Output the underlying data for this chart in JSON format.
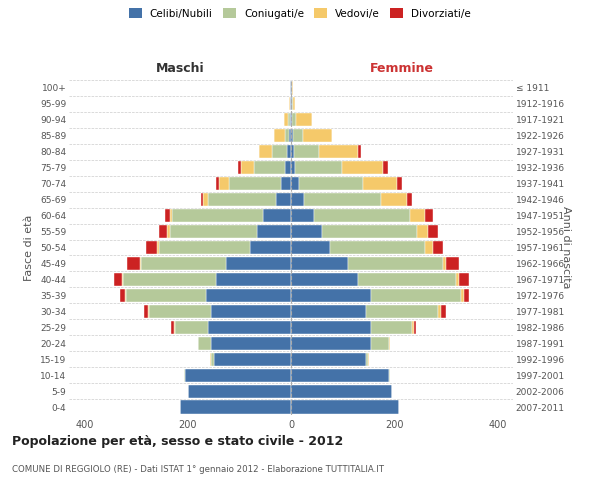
{
  "age_groups": [
    "0-4",
    "5-9",
    "10-14",
    "15-19",
    "20-24",
    "25-29",
    "30-34",
    "35-39",
    "40-44",
    "45-49",
    "50-54",
    "55-59",
    "60-64",
    "65-69",
    "70-74",
    "75-79",
    "80-84",
    "85-89",
    "90-94",
    "95-99",
    "100+"
  ],
  "birth_years": [
    "2007-2011",
    "2002-2006",
    "1997-2001",
    "1992-1996",
    "1987-1991",
    "1982-1986",
    "1977-1981",
    "1972-1976",
    "1967-1971",
    "1962-1966",
    "1957-1961",
    "1952-1956",
    "1947-1951",
    "1942-1946",
    "1937-1941",
    "1932-1936",
    "1927-1931",
    "1922-1926",
    "1917-1921",
    "1912-1916",
    "≤ 1911"
  ],
  "colors": {
    "celibi": "#4472a8",
    "coniugati": "#b5c99a",
    "vedovi": "#f5c96a",
    "divorziati": "#cc2222"
  },
  "legend_labels": [
    "Celibi/Nubili",
    "Coniugati/e",
    "Vedovi/e",
    "Divorziati/e"
  ],
  "maschi": {
    "celibi": [
      215,
      200,
      205,
      150,
      155,
      160,
      155,
      165,
      145,
      125,
      80,
      65,
      55,
      30,
      20,
      12,
      7,
      4,
      2,
      1,
      1
    ],
    "coniugati": [
      0,
      0,
      2,
      5,
      25,
      65,
      120,
      155,
      180,
      165,
      175,
      170,
      175,
      130,
      100,
      60,
      30,
      8,
      4,
      0,
      0
    ],
    "vedovi": [
      0,
      0,
      0,
      1,
      1,
      2,
      2,
      2,
      2,
      3,
      5,
      5,
      5,
      10,
      20,
      25,
      25,
      20,
      8,
      2,
      1
    ],
    "divorziati": [
      0,
      0,
      0,
      0,
      0,
      5,
      8,
      10,
      15,
      25,
      20,
      15,
      10,
      5,
      5,
      5,
      0,
      0,
      0,
      0,
      0
    ]
  },
  "femmine": {
    "nubili": [
      210,
      195,
      190,
      145,
      155,
      155,
      145,
      155,
      130,
      110,
      75,
      60,
      45,
      25,
      15,
      8,
      5,
      4,
      2,
      1,
      1
    ],
    "coniugate": [
      0,
      0,
      2,
      5,
      35,
      80,
      140,
      175,
      190,
      185,
      185,
      185,
      185,
      150,
      125,
      90,
      50,
      20,
      8,
      2,
      0
    ],
    "vedove": [
      0,
      0,
      0,
      1,
      2,
      3,
      5,
      5,
      5,
      5,
      15,
      20,
      30,
      50,
      65,
      80,
      75,
      55,
      30,
      5,
      2
    ],
    "divorziate": [
      0,
      0,
      0,
      0,
      0,
      5,
      10,
      10,
      20,
      25,
      20,
      20,
      15,
      10,
      10,
      10,
      5,
      0,
      0,
      0,
      0
    ]
  },
  "xlim": 430,
  "title": "Popolazione per età, sesso e stato civile - 2012",
  "subtitle": "COMUNE DI REGGIOLO (RE) - Dati ISTAT 1° gennaio 2012 - Elaborazione TUTTITALIA.IT",
  "ylabel_left": "Fasce di età",
  "ylabel_right": "Anni di nascita",
  "xlabel_left": "Maschi",
  "xlabel_right": "Femmine",
  "maschi_color": "#333333",
  "femmine_color": "#cc3333",
  "bg_color": "#ffffff",
  "grid_color": "#cccccc"
}
